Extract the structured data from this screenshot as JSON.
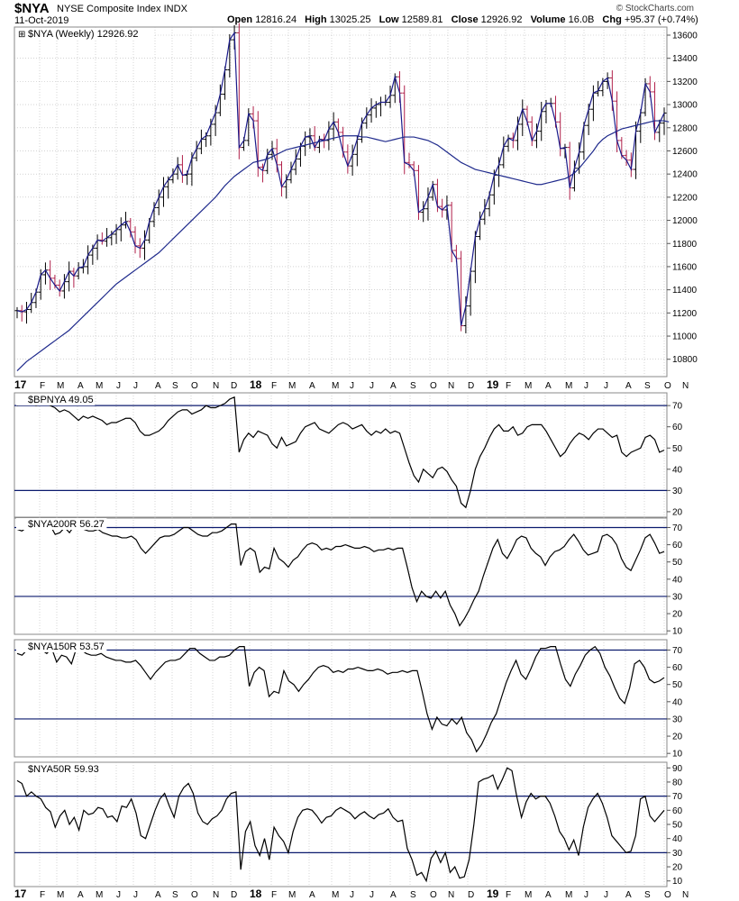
{
  "header": {
    "symbol": "$NYA",
    "name": "NYSE Composite Index",
    "exchange": "INDX",
    "date": "11-Oct-2019",
    "copyright": "© StockCharts.com",
    "open_label": "Open",
    "open": "12816.24",
    "high_label": "High",
    "high": "13025.25",
    "low_label": "Low",
    "low": "12589.81",
    "close_label": "Close",
    "close": "12926.92",
    "volume_label": "Volume",
    "volume": "16.0B",
    "chg_label": "Chg",
    "chg": "+95.37 (+0.74%)"
  },
  "colors": {
    "price": "#1a1a8a",
    "up": "#000000",
    "down": "#b0204a",
    "ma": "#1f2a8c",
    "band": "#0b1a6e",
    "grid": "#b8b8b8",
    "indicator": "#000000"
  },
  "x_axis": {
    "labels": [
      "17",
      "F",
      "M",
      "A",
      "M",
      "J",
      "J",
      "A",
      "S",
      "O",
      "N",
      "D",
      "18",
      "F",
      "M",
      "A",
      "M",
      "J",
      "J",
      "A",
      "S",
      "O",
      "N",
      "D",
      "19",
      "F",
      "M",
      "A",
      "M",
      "J",
      "J",
      "A",
      "S",
      "O",
      "N"
    ],
    "bold_labels": [
      "17",
      "18",
      "19"
    ]
  },
  "chart_data": [
    {
      "type": "line",
      "title": "$NYA (Weekly) 12926.92",
      "yticks": [
        10800,
        11000,
        11200,
        11400,
        11600,
        11800,
        12000,
        12200,
        12400,
        12600,
        12800,
        13000,
        13200,
        13400,
        13600
      ],
      "ylim": [
        10650,
        13670
      ],
      "grid": true,
      "series": [
        {
          "values": [
            11220,
            11210,
            11230,
            11290,
            11380,
            11530,
            11570,
            11500,
            11440,
            11390,
            11470,
            11560,
            11520,
            11590,
            11600,
            11700,
            11760,
            11830,
            11820,
            11850,
            11880,
            11920,
            11960,
            11990,
            11900,
            11780,
            11760,
            11830,
            11990,
            12110,
            12200,
            12290,
            12350,
            12400,
            12480,
            12390,
            12400,
            12540,
            12620,
            12700,
            12730,
            12830,
            12930,
            13090,
            13300,
            13560,
            13620,
            12630,
            12690,
            12920,
            12860,
            12460,
            12430,
            12570,
            12620,
            12480,
            12290,
            12350,
            12440,
            12530,
            12640,
            12720,
            12730,
            12630,
            12700,
            12690,
            12790,
            12850,
            12760,
            12590,
            12470,
            12570,
            12700,
            12840,
            12910,
            12970,
            13000,
            13020,
            13020,
            13080,
            13240,
            13100,
            12500,
            12480,
            12430,
            12070,
            12100,
            12200,
            12310,
            12120,
            12090,
            12130,
            11740,
            11670,
            11090,
            11260,
            11560,
            11860,
            12010,
            12100,
            12220,
            12390,
            12480,
            12640,
            12710,
            12690,
            12830,
            12960,
            12850,
            12690,
            12770,
            12940,
            13010,
            13010,
            12850,
            12620,
            12630,
            12280,
            12450,
            12590,
            12820,
            12960,
            13100,
            13120,
            13200,
            13230,
            13030,
            12690,
            12560,
            12520,
            12440,
            12770,
            12930,
            13180,
            13110,
            12760,
            12840,
            12927
          ]
        },
        {
          "values": [
            10700,
            10740,
            10780,
            10810,
            10840,
            10870,
            10900,
            10930,
            10960,
            10990,
            11020,
            11050,
            11090,
            11130,
            11170,
            11210,
            11250,
            11290,
            11330,
            11370,
            11410,
            11450,
            11480,
            11510,
            11540,
            11570,
            11600,
            11630,
            11660,
            11690,
            11720,
            11760,
            11800,
            11840,
            11880,
            11920,
            11960,
            12000,
            12040,
            12080,
            12120,
            12160,
            12200,
            12250,
            12300,
            12340,
            12380,
            12410,
            12440,
            12470,
            12500,
            12510,
            12520,
            12530,
            12550,
            12570,
            12590,
            12610,
            12620,
            12630,
            12640,
            12650,
            12660,
            12670,
            12680,
            12690,
            12700,
            12710,
            12720,
            12730,
            12730,
            12730,
            12730,
            12720,
            12720,
            12710,
            12700,
            12690,
            12680,
            12690,
            12700,
            12710,
            12720,
            12720,
            12720,
            12710,
            12700,
            12690,
            12670,
            12650,
            12620,
            12590,
            12560,
            12530,
            12500,
            12480,
            12460,
            12440,
            12430,
            12420,
            12410,
            12400,
            12390,
            12380,
            12370,
            12360,
            12350,
            12340,
            12330,
            12320,
            12310,
            12310,
            12320,
            12330,
            12340,
            12350,
            12360,
            12380,
            12410,
            12450,
            12500,
            12550,
            12600,
            12660,
            12700,
            12730,
            12750,
            12770,
            12790,
            12800,
            12810,
            12820,
            12830,
            12840,
            12850,
            12860,
            12860,
            12860,
            12850
          ]
        }
      ]
    },
    {
      "type": "line",
      "title": "$BPNYA 49.05",
      "yticks": [
        20,
        30,
        40,
        50,
        60,
        70
      ],
      "ylim": [
        17,
        76
      ],
      "bands": [
        30,
        70
      ],
      "series": [
        {
          "values": [
            70,
            71,
            72,
            71,
            70,
            71,
            71,
            70,
            69,
            67,
            68,
            67,
            65,
            63,
            65,
            64,
            65,
            64,
            63,
            61,
            62,
            62,
            63,
            64,
            64,
            62,
            58,
            56,
            56,
            57,
            58,
            60,
            63,
            65,
            67,
            68,
            68,
            66,
            67,
            68,
            70,
            69,
            69,
            70,
            71,
            73,
            74,
            48,
            54,
            57,
            55,
            58,
            57,
            56,
            52,
            50,
            55,
            51,
            52,
            53,
            57,
            60,
            61,
            62,
            59,
            58,
            57,
            59,
            61,
            62,
            61,
            59,
            60,
            61,
            58,
            56,
            58,
            57,
            59,
            57,
            58,
            57,
            50,
            43,
            37,
            34,
            40,
            38,
            36,
            40,
            41,
            39,
            35,
            32,
            24,
            22,
            30,
            40,
            46,
            50,
            55,
            59,
            61,
            58,
            58,
            60,
            56,
            57,
            60,
            61,
            61,
            61,
            58,
            54,
            50,
            46,
            48,
            52,
            55,
            57,
            56,
            54,
            57,
            59,
            59,
            57,
            55,
            56,
            48,
            46,
            48,
            49,
            50,
            55,
            56,
            54,
            48,
            49
          ]
        }
      ]
    },
    {
      "type": "line",
      "title": "$NYA200R 56.27",
      "yticks": [
        10,
        20,
        30,
        40,
        50,
        60,
        70
      ],
      "ylim": [
        8,
        76
      ],
      "bands": [
        30,
        70
      ],
      "series": [
        {
          "values": [
            69,
            68,
            70,
            72,
            71,
            70,
            69,
            71,
            66,
            67,
            70,
            67,
            71,
            70,
            69,
            68,
            68,
            69,
            67,
            66,
            65,
            65,
            64,
            64,
            65,
            63,
            58,
            55,
            58,
            61,
            64,
            65,
            65,
            66,
            68,
            70,
            70,
            68,
            66,
            65,
            65,
            67,
            67,
            68,
            70,
            72,
            72,
            48,
            56,
            58,
            56,
            44,
            47,
            46,
            58,
            52,
            50,
            47,
            51,
            53,
            57,
            60,
            61,
            60,
            57,
            58,
            57,
            59,
            59,
            60,
            59,
            58,
            58,
            59,
            58,
            56,
            57,
            57,
            58,
            57,
            58,
            58,
            47,
            35,
            27,
            33,
            30,
            29,
            33,
            29,
            33,
            25,
            20,
            13,
            17,
            22,
            28,
            33,
            42,
            50,
            58,
            63,
            55,
            52,
            57,
            63,
            65,
            64,
            58,
            55,
            53,
            48,
            53,
            56,
            57,
            59,
            63,
            66,
            62,
            57,
            54,
            55,
            56,
            65,
            66,
            64,
            60,
            52,
            47,
            45,
            51,
            57,
            64,
            66,
            61,
            55,
            56
          ]
        }
      ]
    },
    {
      "type": "line",
      "title": "$NYA150R 53.57",
      "yticks": [
        10,
        20,
        30,
        40,
        50,
        60,
        70
      ],
      "ylim": [
        8,
        76
      ],
      "bands": [
        30,
        70
      ],
      "series": [
        {
          "values": [
            68,
            67,
            70,
            73,
            71,
            70,
            68,
            71,
            63,
            67,
            66,
            62,
            71,
            70,
            68,
            67,
            67,
            68,
            66,
            65,
            64,
            64,
            63,
            63,
            64,
            61,
            57,
            53,
            57,
            60,
            63,
            64,
            64,
            65,
            68,
            71,
            71,
            68,
            66,
            64,
            64,
            66,
            66,
            67,
            70,
            72,
            72,
            49,
            57,
            60,
            58,
            43,
            46,
            45,
            58,
            52,
            50,
            46,
            50,
            53,
            57,
            60,
            61,
            60,
            57,
            58,
            57,
            59,
            59,
            60,
            59,
            58,
            58,
            59,
            58,
            56,
            57,
            57,
            58,
            57,
            58,
            58,
            46,
            33,
            24,
            31,
            27,
            26,
            30,
            27,
            31,
            22,
            18,
            11,
            15,
            21,
            28,
            33,
            42,
            51,
            58,
            64,
            56,
            53,
            59,
            66,
            71,
            71,
            72,
            72,
            62,
            53,
            49,
            56,
            61,
            67,
            70,
            72,
            68,
            60,
            55,
            48,
            42,
            39,
            48,
            62,
            64,
            60,
            53,
            51,
            52,
            54
          ]
        }
      ]
    },
    {
      "type": "line",
      "title": "$NYA50R 59.93",
      "yticks": [
        10,
        20,
        30,
        40,
        50,
        60,
        70,
        80,
        90
      ],
      "ylim": [
        6,
        94
      ],
      "bands": [
        30,
        70
      ],
      "series": [
        {
          "values": [
            81,
            79,
            70,
            73,
            70,
            68,
            62,
            59,
            48,
            56,
            60,
            50,
            55,
            46,
            60,
            57,
            58,
            62,
            61,
            55,
            56,
            52,
            63,
            62,
            68,
            58,
            42,
            40,
            50,
            60,
            68,
            72,
            63,
            55,
            70,
            76,
            79,
            72,
            58,
            52,
            50,
            54,
            56,
            60,
            68,
            72,
            73,
            18,
            45,
            52,
            35,
            28,
            40,
            25,
            48,
            42,
            38,
            30,
            45,
            55,
            60,
            61,
            60,
            56,
            51,
            55,
            56,
            60,
            62,
            60,
            58,
            54,
            57,
            59,
            56,
            54,
            57,
            58,
            61,
            55,
            52,
            53,
            33,
            25,
            14,
            16,
            10,
            26,
            31,
            23,
            30,
            16,
            20,
            12,
            13,
            25,
            50,
            80,
            82,
            83,
            85,
            75,
            82,
            90,
            88,
            70,
            55,
            66,
            72,
            68,
            70,
            70,
            65,
            56,
            45,
            40,
            32,
            39,
            28,
            48,
            62,
            68,
            72,
            65,
            55,
            42,
            38,
            34,
            30,
            31,
            42,
            68,
            70,
            56,
            52,
            56,
            60
          ]
        }
      ]
    }
  ]
}
